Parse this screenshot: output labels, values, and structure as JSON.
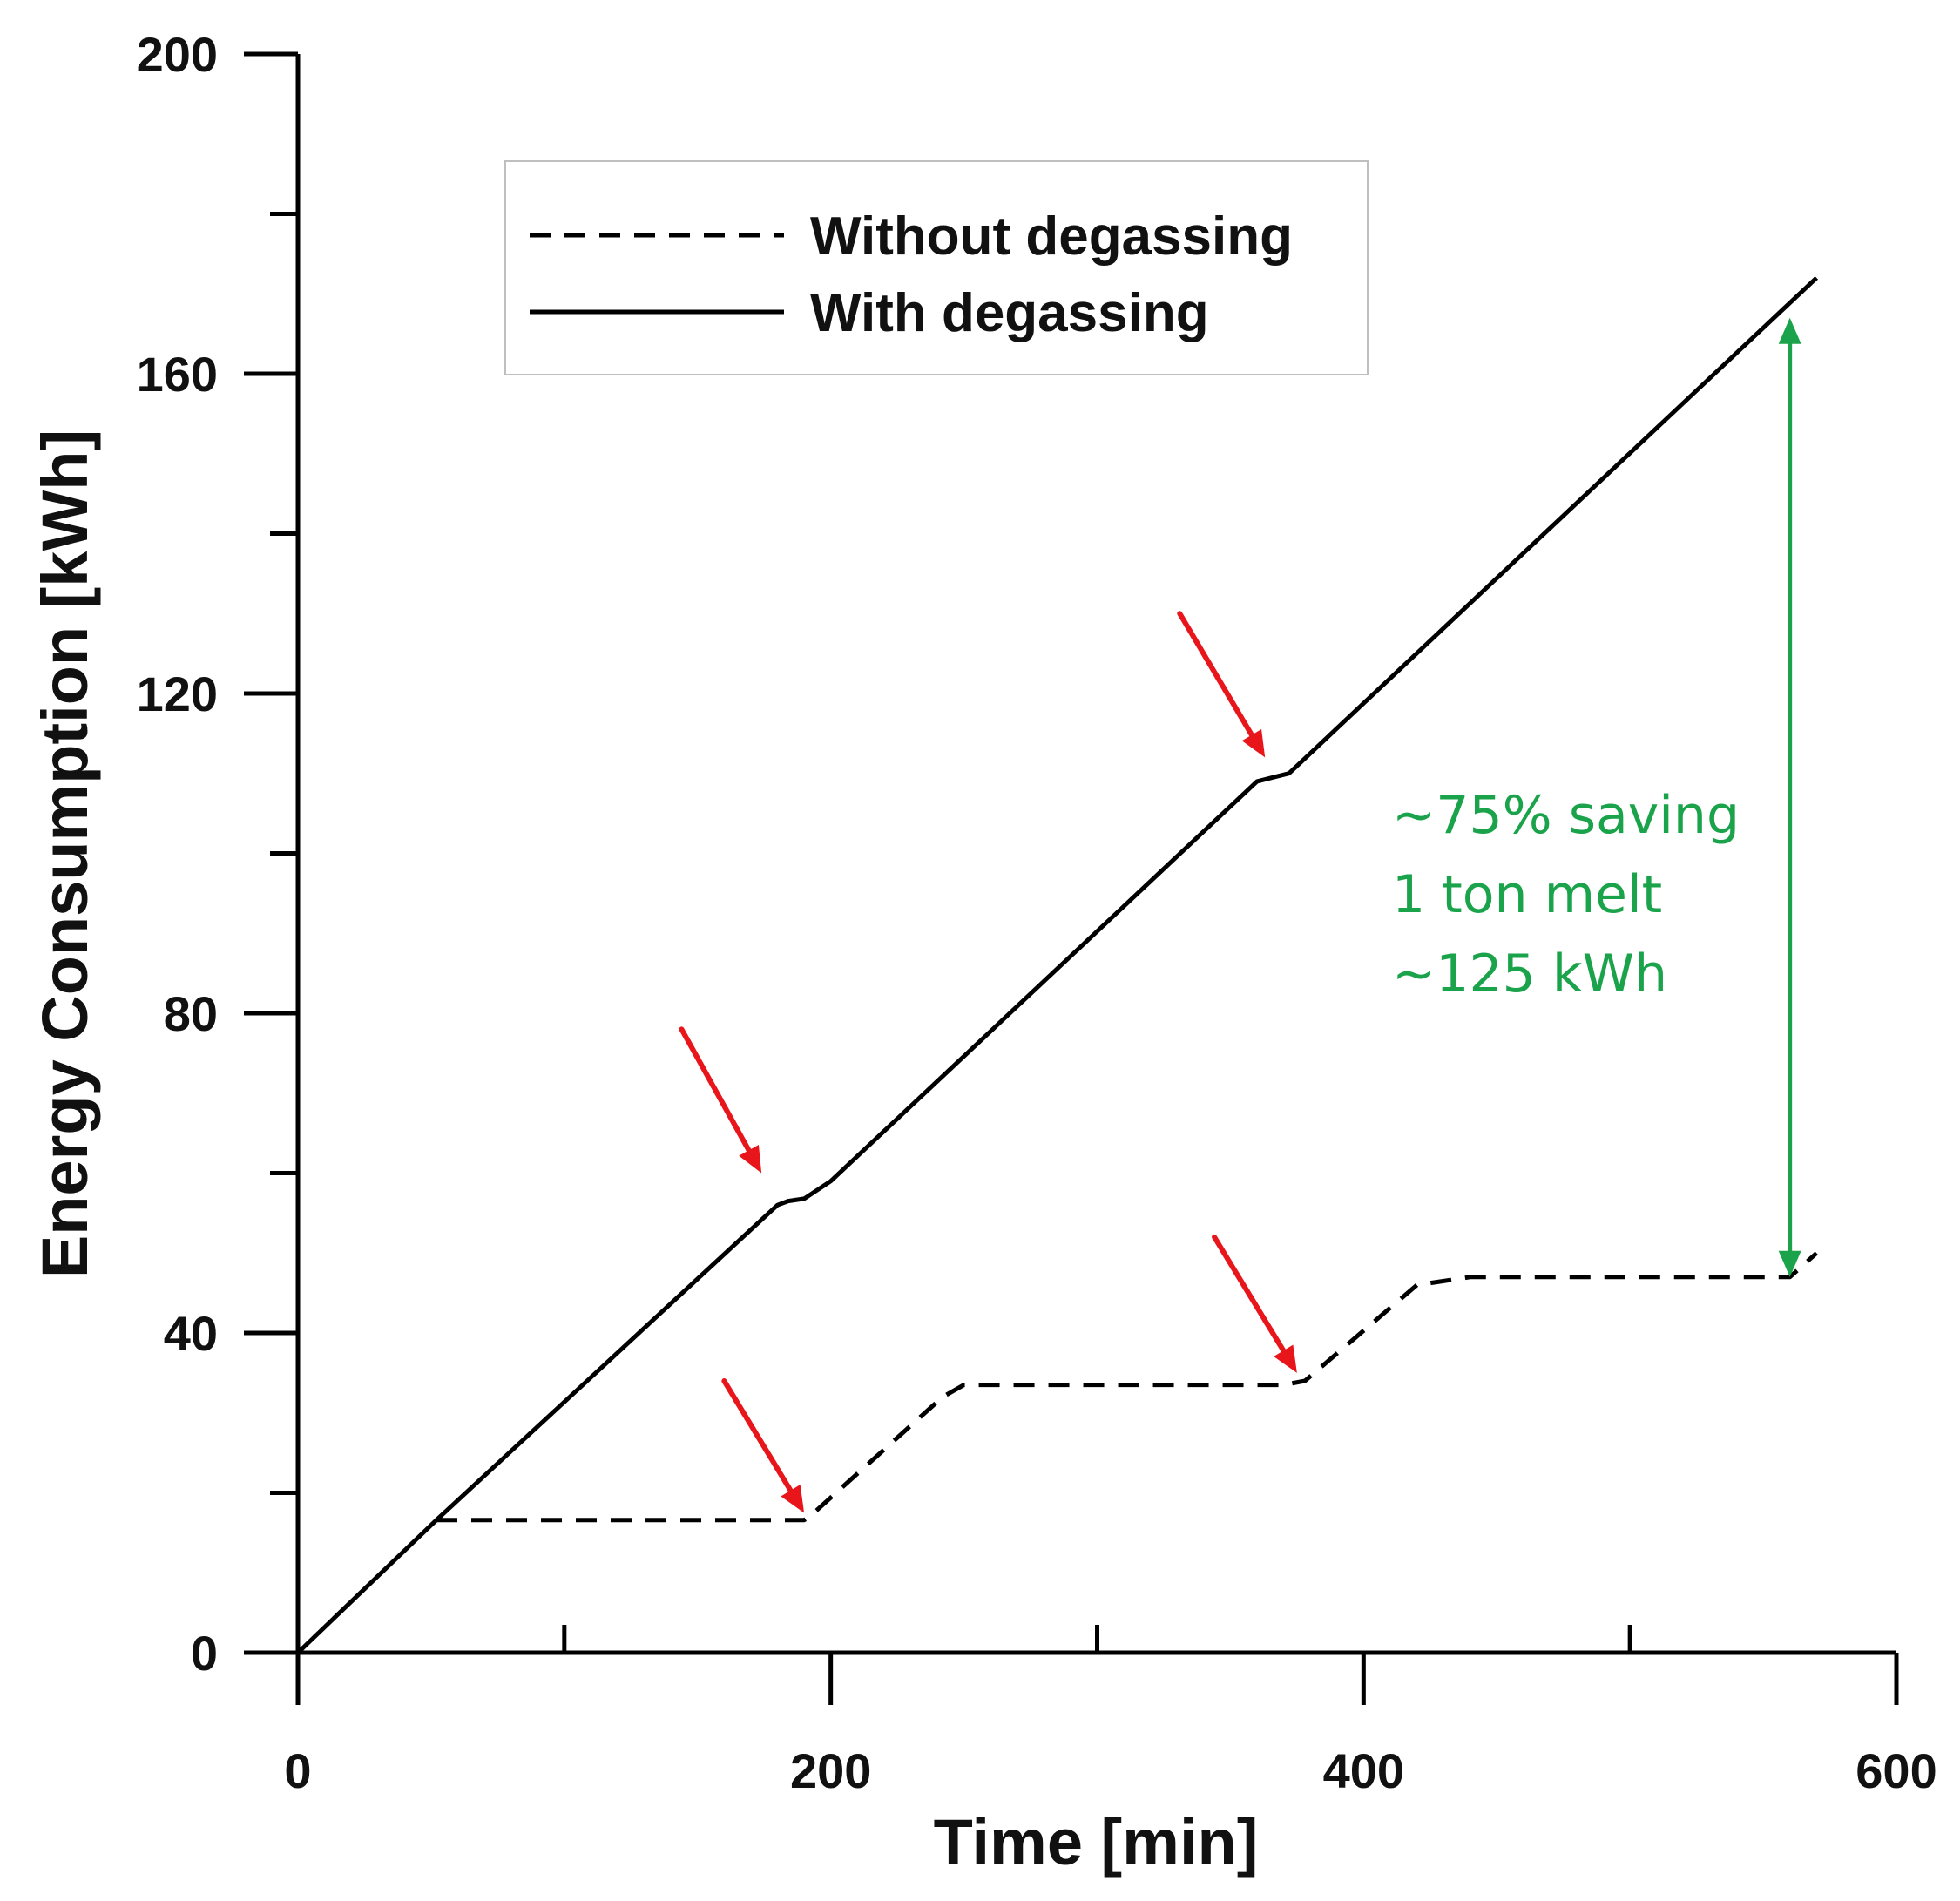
{
  "colors": {
    "series": "#000000",
    "marker_arrows": "#e8161b",
    "saving_annotation": "#1aa34a",
    "legend_border": "#bfbfbf"
  },
  "chart_data": {
    "type": "line",
    "title": "",
    "xlabel": "Time [min]",
    "ylabel": "Energy Consumption [kWh]",
    "xlim": [
      0,
      600
    ],
    "ylim": [
      0,
      200
    ],
    "xticks": [
      0,
      200,
      400,
      600
    ],
    "xtick_labels": [
      "0",
      "200",
      "400",
      "600"
    ],
    "x_minor_ticks": [
      100,
      300,
      500
    ],
    "yticks": [
      0,
      40,
      80,
      120,
      160,
      200
    ],
    "ytick_labels": [
      "0",
      "40",
      "80",
      "120",
      "160",
      "200"
    ],
    "y_minor_ticks": [
      20,
      60,
      100,
      140,
      180
    ],
    "grid": false,
    "legend_position": "top-center",
    "series": [
      {
        "name": "Without degassing",
        "style": "dashed",
        "x": [
          52,
          190,
          192,
          242,
          250,
          370,
          378,
          420,
          440,
          560,
          570
        ],
        "y": [
          16.6,
          16.6,
          17.0,
          32.0,
          33.5,
          33.5,
          34.0,
          46.0,
          47.0,
          47.0,
          50.0
        ]
      },
      {
        "name": "With degassing",
        "style": "solid",
        "x": [
          0,
          52,
          180,
          184,
          190,
          200,
          360,
          366,
          372,
          570
        ],
        "y": [
          0,
          16.6,
          56.0,
          56.5,
          56.8,
          59.0,
          109.0,
          109.5,
          110.0,
          172.0
        ]
      }
    ],
    "annotations": {
      "saving_text": [
        "~75% saving",
        "1 ton melt",
        "~125 kWh"
      ],
      "saving_arrow": {
        "x": 560,
        "y_from": 47.0,
        "y_to": 167.0
      },
      "marker_arrows": [
        {
          "from": [
            144,
            78
          ],
          "to": [
            174,
            60
          ]
        },
        {
          "from": [
            331,
            130
          ],
          "to": [
            363,
            112
          ]
        },
        {
          "from": [
            160,
            34
          ],
          "to": [
            190,
            17.5
          ]
        },
        {
          "from": [
            344,
            52
          ],
          "to": [
            375,
            35
          ]
        }
      ]
    }
  }
}
